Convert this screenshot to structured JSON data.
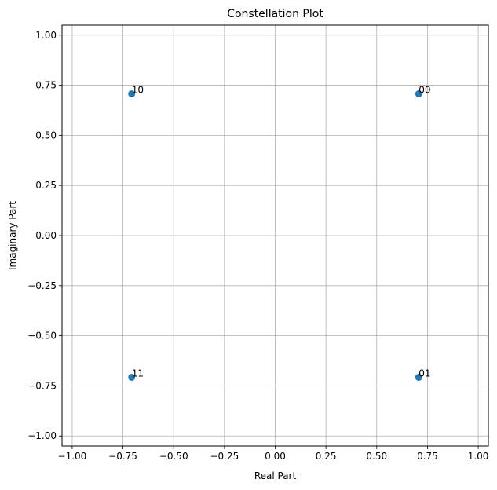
{
  "chart_data": {
    "type": "scatter",
    "title": "Constellation Plot",
    "xlabel": "Real Part",
    "ylabel": "Imaginary Part",
    "xlim": [
      -1.05,
      1.05
    ],
    "ylim": [
      -1.05,
      1.05
    ],
    "grid": true,
    "xticks": [
      -1.0,
      -0.75,
      -0.5,
      -0.25,
      0.0,
      0.25,
      0.5,
      0.75,
      1.0
    ],
    "yticks": [
      -1.0,
      -0.75,
      -0.5,
      -0.25,
      0.0,
      0.25,
      0.5,
      0.75,
      1.0
    ],
    "xtick_labels": [
      "−1.00",
      "−0.75",
      "−0.50",
      "−0.25",
      "0.00",
      "0.25",
      "0.50",
      "0.75",
      "1.00"
    ],
    "ytick_labels": [
      "−1.00",
      "−0.75",
      "−0.50",
      "−0.25",
      "0.00",
      "0.25",
      "0.50",
      "0.75",
      "1.00"
    ],
    "marker_color": "#1f77b4",
    "grid_color": "#b0b0b0",
    "points": [
      {
        "x": 0.707,
        "y": 0.707,
        "label": "00"
      },
      {
        "x": 0.707,
        "y": -0.707,
        "label": "01"
      },
      {
        "x": -0.707,
        "y": 0.707,
        "label": "10"
      },
      {
        "x": -0.707,
        "y": -0.707,
        "label": "11"
      }
    ]
  }
}
